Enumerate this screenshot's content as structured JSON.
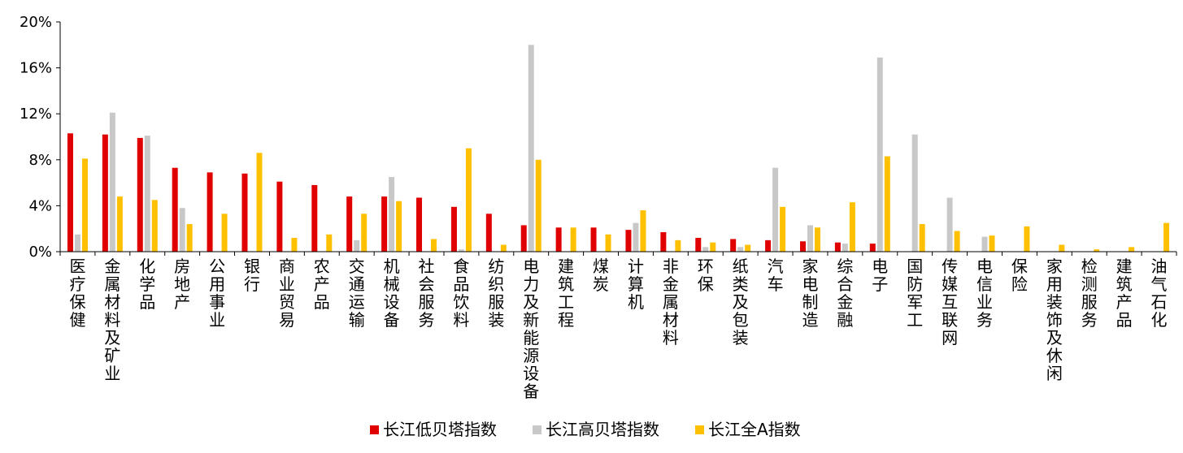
{
  "chart_data": {
    "type": "bar",
    "title": "",
    "xlabel": "",
    "ylabel": "",
    "ylim": [
      0,
      20
    ],
    "yticks": [
      "0%",
      "4%",
      "8%",
      "12%",
      "16%",
      "20%"
    ],
    "categories": [
      "医疗保健",
      "金属材料及矿业",
      "化学品",
      "房地产",
      "公用事业",
      "银行",
      "商业贸易",
      "农产品",
      "交通运输",
      "机械设备",
      "社会服务",
      "食品饮料",
      "纺织服装",
      "电力及新能源设备",
      "建筑工程",
      "煤炭",
      "计算机",
      "非金属材料",
      "环保",
      "纸类及包装",
      "汽车",
      "家电制造",
      "综合金融",
      "电子",
      "国防军工",
      "传媒互联网",
      "电信业务",
      "保险",
      "家用装饰及休闲",
      "检测服务",
      "建筑产品",
      "油气石化"
    ],
    "series": [
      {
        "name": "长江低贝塔指数",
        "color": "#E00000",
        "values": [
          10.3,
          10.2,
          9.9,
          7.3,
          6.9,
          6.8,
          6.1,
          5.8,
          4.8,
          4.8,
          4.7,
          3.9,
          3.3,
          2.3,
          2.1,
          2.1,
          1.9,
          1.7,
          1.2,
          1.1,
          1.0,
          0.9,
          0.8,
          0.7,
          0,
          0,
          0,
          0,
          0,
          0,
          0,
          0
        ]
      },
      {
        "name": "长江高贝塔指数",
        "color": "#C8C8C8",
        "values": [
          1.5,
          12.1,
          10.1,
          3.8,
          0,
          0,
          0,
          0,
          1.0,
          6.5,
          0,
          0.2,
          0,
          18.0,
          0,
          0,
          2.5,
          0,
          0.4,
          0.4,
          7.3,
          2.3,
          0.7,
          16.9,
          10.2,
          4.7,
          1.3,
          0,
          0,
          0,
          0,
          0
        ]
      },
      {
        "name": "长江全A指数",
        "color": "#FFC000",
        "values": [
          8.1,
          4.8,
          4.5,
          2.4,
          3.3,
          8.6,
          1.2,
          1.5,
          3.3,
          4.4,
          1.1,
          9.0,
          0.6,
          8.0,
          2.1,
          1.5,
          3.6,
          1.0,
          0.8,
          0.6,
          3.9,
          2.1,
          4.3,
          8.3,
          2.4,
          1.8,
          1.4,
          2.2,
          0.6,
          0.2,
          0.4,
          2.5
        ]
      }
    ],
    "legend": "bottom",
    "grid": false
  }
}
